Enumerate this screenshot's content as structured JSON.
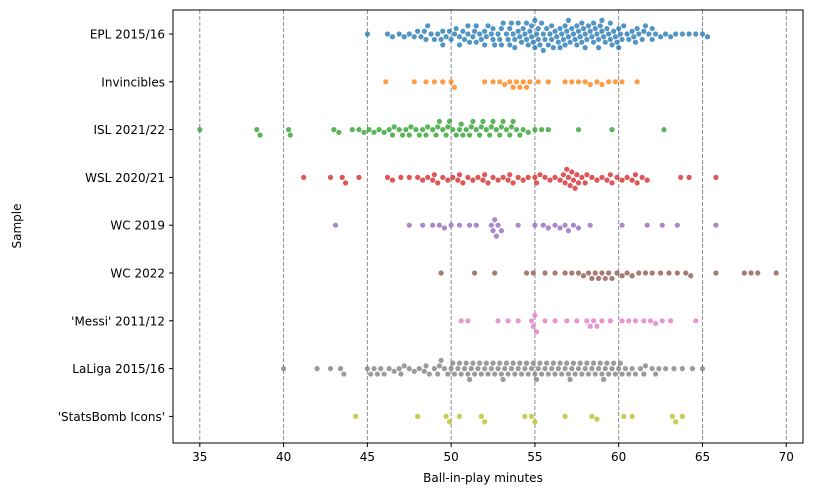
{
  "chart_data": {
    "type": "scatter",
    "subtype": "swarm",
    "title": "",
    "xlabel": "Ball-in-play minutes",
    "ylabel": "Sample",
    "xlim": [
      33.4,
      71.0
    ],
    "xticks": [
      35,
      40,
      45,
      50,
      55,
      60,
      65,
      70
    ],
    "xtick_labels": [
      "35",
      "40",
      "45",
      "50",
      "55",
      "60",
      "65",
      "70"
    ],
    "grid": "vertical dashed lines at x ticks",
    "legend": "none",
    "categories": [
      "EPL 2015/16",
      "Invincibles",
      "ISL 2021/22",
      "WSL 2020/21",
      "WC 2019",
      "WC 2022",
      "'Messi' 2011/12",
      "LaLiga 2015/16",
      "'StatsBomb Icons'"
    ],
    "colors": [
      "#1f77b4",
      "#ff7f0e",
      "#2ca02c",
      "#d62728",
      "#9467bd",
      "#8c564b",
      "#e377c2",
      "#7f7f7f",
      "#bcbd22"
    ],
    "series": [
      {
        "name": "EPL 2015/16",
        "values": [
          45.0,
          46.2,
          46.5,
          46.9,
          47.2,
          47.5,
          47.8,
          48.0,
          48.2,
          48.4,
          48.6,
          48.8,
          49.0,
          49.2,
          49.4,
          49.5,
          49.7,
          49.9,
          50.0,
          50.2,
          50.3,
          50.5,
          50.7,
          50.8,
          51.0,
          51.1,
          51.3,
          51.4,
          51.5,
          51.7,
          51.8,
          52.0,
          52.1,
          52.2,
          52.4,
          52.5,
          52.6,
          52.8,
          52.9,
          53.0,
          53.1,
          53.3,
          53.4,
          53.5,
          53.6,
          53.7,
          53.8,
          54.0,
          54.1,
          54.2,
          54.3,
          54.4,
          54.5,
          54.6,
          54.7,
          54.8,
          54.9,
          55.0,
          55.1,
          55.2,
          55.3,
          55.4,
          55.5,
          55.6,
          55.7,
          55.8,
          55.9,
          56.0,
          56.1,
          56.2,
          56.3,
          56.4,
          56.5,
          56.6,
          56.7,
          56.8,
          56.9,
          57.0,
          57.1,
          57.2,
          57.3,
          57.4,
          57.5,
          57.6,
          57.7,
          57.8,
          57.9,
          58.0,
          58.1,
          58.2,
          58.3,
          58.4,
          58.5,
          58.6,
          58.7,
          58.8,
          58.9,
          59.0,
          59.1,
          59.2,
          59.3,
          59.4,
          59.5,
          59.6,
          59.7,
          59.8,
          59.9,
          60.0,
          60.1,
          60.2,
          60.3,
          60.5,
          60.6,
          60.8,
          60.9,
          61.1,
          61.2,
          61.4,
          61.6,
          61.8,
          62.0,
          62.2,
          62.5,
          62.8,
          63.1,
          63.4,
          63.8,
          64.2,
          64.6,
          65.0,
          65.3,
          52.0,
          52.5,
          53.0,
          53.5,
          54.0,
          54.5,
          55.0,
          55.5,
          56.0,
          56.5,
          57.0,
          57.5,
          58.0,
          58.5,
          59.0,
          59.5,
          60.0,
          50.5,
          51.0,
          51.5,
          49.5,
          48.5,
          61.0,
          61.5,
          62.0,
          55.2,
          54.8,
          53.8,
          56.8,
          57.8,
          58.8
        ]
      },
      {
        "name": "Invincibles",
        "values": [
          46.1,
          47.8,
          48.5,
          49.0,
          49.5,
          50.0,
          50.2,
          52.0,
          52.5,
          52.9,
          53.2,
          53.5,
          53.7,
          53.9,
          54.1,
          54.3,
          54.5,
          54.7,
          55.2,
          55.8,
          56.8,
          57.2,
          57.6,
          58.0,
          58.3,
          58.7,
          59.0,
          59.4,
          59.8,
          60.2,
          61.1
        ]
      },
      {
        "name": "ISL 2021/22",
        "values": [
          35.0,
          38.4,
          38.6,
          40.3,
          40.4,
          43.0,
          43.3,
          44.1,
          44.5,
          44.8,
          45.1,
          45.4,
          45.7,
          46.0,
          46.3,
          46.6,
          46.9,
          47.1,
          47.3,
          47.6,
          47.9,
          48.1,
          48.3,
          48.6,
          48.9,
          49.1,
          49.3,
          49.5,
          49.7,
          49.9,
          50.1,
          50.3,
          50.5,
          50.7,
          50.9,
          51.1,
          51.3,
          51.5,
          51.7,
          51.9,
          52.1,
          52.3,
          52.5,
          52.7,
          52.9,
          53.1,
          53.3,
          53.5,
          53.7,
          53.9,
          54.1,
          54.3,
          54.6,
          55.0,
          55.4,
          55.8,
          57.6,
          59.6,
          62.7,
          46.5,
          47.5,
          48.5,
          49.2,
          49.8,
          50.6,
          51.2,
          51.8,
          52.4,
          53.0,
          53.6
        ]
      },
      {
        "name": "WSL 2020/21",
        "values": [
          41.2,
          42.8,
          43.5,
          43.7,
          44.5,
          46.2,
          46.5,
          47.0,
          47.5,
          48.0,
          48.3,
          48.6,
          48.9,
          49.2,
          49.5,
          49.8,
          50.1,
          50.4,
          50.7,
          51.0,
          51.3,
          51.6,
          51.9,
          52.2,
          52.5,
          52.8,
          53.1,
          53.4,
          53.7,
          54.0,
          54.3,
          54.6,
          55.0,
          55.3,
          55.6,
          55.9,
          56.2,
          56.5,
          56.8,
          57.0,
          57.2,
          57.4,
          57.6,
          57.8,
          58.1,
          58.4,
          58.7,
          59.0,
          59.3,
          59.6,
          59.9,
          60.2,
          60.5,
          60.8,
          61.1,
          61.4,
          61.7,
          63.7,
          64.2,
          65.8,
          56.9,
          57.1,
          57.3,
          57.5,
          56.7,
          49.0,
          50.5,
          52.0,
          53.5,
          55.1,
          58.0,
          59.5,
          61.0
        ]
      },
      {
        "name": "WC 2019",
        "values": [
          43.1,
          47.5,
          48.3,
          48.9,
          49.3,
          49.6,
          50.0,
          50.5,
          51.1,
          51.5,
          52.4,
          52.6,
          52.8,
          52.5,
          52.7,
          54.0,
          55.0,
          55.5,
          55.8,
          56.2,
          56.5,
          56.8,
          57.0,
          57.3,
          57.6,
          58.3,
          60.2,
          61.7,
          62.6,
          63.5,
          65.8,
          53.0
        ]
      },
      {
        "name": "WC 2022",
        "values": [
          49.4,
          51.4,
          52.6,
          54.5,
          54.9,
          55.6,
          56.2,
          56.8,
          57.2,
          57.6,
          57.9,
          58.2,
          58.4,
          58.6,
          58.8,
          59.0,
          59.2,
          59.4,
          59.6,
          59.9,
          60.2,
          60.5,
          60.8,
          61.2,
          61.6,
          62.0,
          62.5,
          63.0,
          63.5,
          64.0,
          64.3,
          65.8,
          67.5,
          67.9,
          68.3,
          69.4
        ]
      },
      {
        "name": "'Messi' 2011/12",
        "values": [
          50.6,
          51.0,
          52.8,
          53.4,
          54.0,
          54.9,
          55.0,
          54.8,
          55.1,
          55.6,
          56.2,
          56.9,
          57.5,
          58.1,
          58.3,
          58.5,
          58.7,
          59.0,
          59.5,
          60.2,
          60.6,
          61.0,
          61.5,
          61.9,
          62.2,
          62.6,
          63.1,
          64.6
        ]
      },
      {
        "name": "LaLiga 2015/16",
        "values": [
          40.0,
          42.0,
          42.8,
          43.4,
          43.6,
          45.0,
          45.2,
          45.4,
          45.6,
          45.8,
          46.0,
          46.3,
          46.6,
          46.9,
          47.2,
          47.5,
          47.8,
          48.1,
          48.4,
          48.7,
          49.0,
          49.2,
          49.4,
          49.6,
          49.8,
          50.0,
          50.2,
          50.4,
          50.6,
          50.8,
          51.0,
          51.2,
          51.4,
          51.6,
          51.8,
          52.0,
          52.2,
          52.4,
          52.6,
          52.8,
          53.0,
          53.2,
          53.4,
          53.6,
          53.8,
          54.0,
          54.2,
          54.4,
          54.6,
          54.8,
          55.0,
          55.2,
          55.4,
          55.6,
          55.8,
          56.0,
          56.2,
          56.4,
          56.6,
          56.8,
          57.0,
          57.2,
          57.4,
          57.6,
          57.8,
          58.0,
          58.2,
          58.4,
          58.6,
          58.8,
          59.0,
          59.2,
          59.4,
          59.6,
          59.8,
          60.0,
          60.2,
          60.4,
          60.6,
          60.8,
          61.0,
          61.3,
          61.6,
          62.0,
          62.4,
          62.8,
          63.3,
          63.8,
          64.4,
          65.0,
          50.1,
          50.5,
          50.9,
          51.3,
          51.7,
          52.1,
          52.5,
          52.9,
          53.3,
          53.7,
          54.1,
          54.5,
          54.9,
          55.3,
          55.7,
          56.1,
          56.5,
          56.9,
          57.3,
          57.7,
          58.1,
          58.5,
          58.9,
          59.3,
          59.7,
          60.1,
          48.5,
          47.0,
          49.3,
          61.5,
          62.2,
          51.1,
          53.1,
          55.1,
          57.1,
          59.1
        ]
      },
      {
        "name": "'StatsBomb Icons'",
        "values": [
          44.3,
          48.0,
          49.7,
          49.9,
          50.5,
          51.8,
          52.0,
          54.4,
          54.8,
          55.0,
          56.8,
          58.4,
          58.7,
          60.3,
          60.8,
          63.2,
          63.4,
          63.8
        ]
      }
    ]
  }
}
